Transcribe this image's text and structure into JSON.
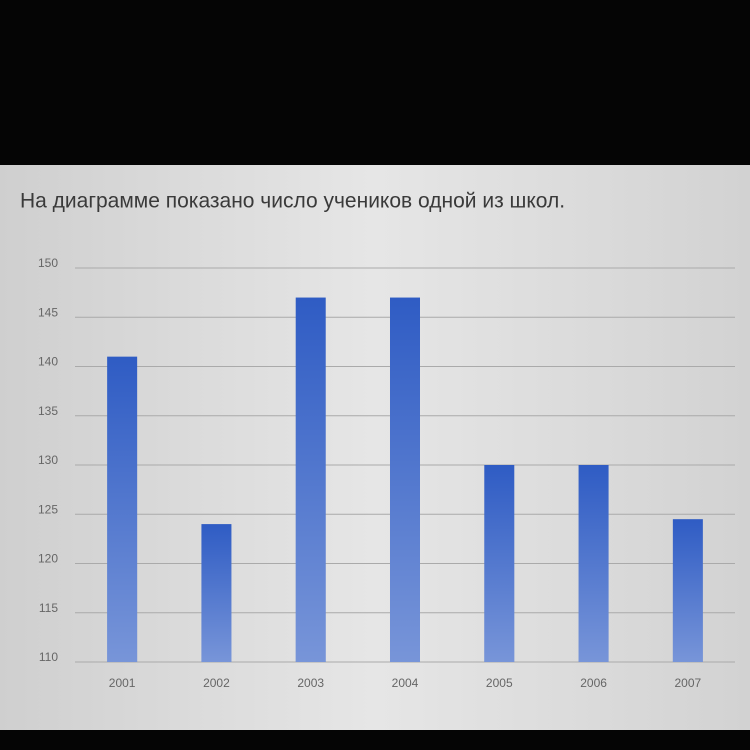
{
  "chart_data": {
    "type": "bar",
    "title": "На диаграмме показано число учеников одной из школ.",
    "categories": [
      "2001",
      "2002",
      "2003",
      "2004",
      "2005",
      "2006",
      "2007"
    ],
    "values": [
      141,
      124,
      147,
      147,
      130,
      130,
      124.5
    ],
    "color": "#2f5cc4",
    "ylim": [
      110,
      150
    ],
    "yticks": [
      110,
      115,
      120,
      125,
      130,
      135,
      140,
      145,
      150
    ],
    "grid": true
  }
}
